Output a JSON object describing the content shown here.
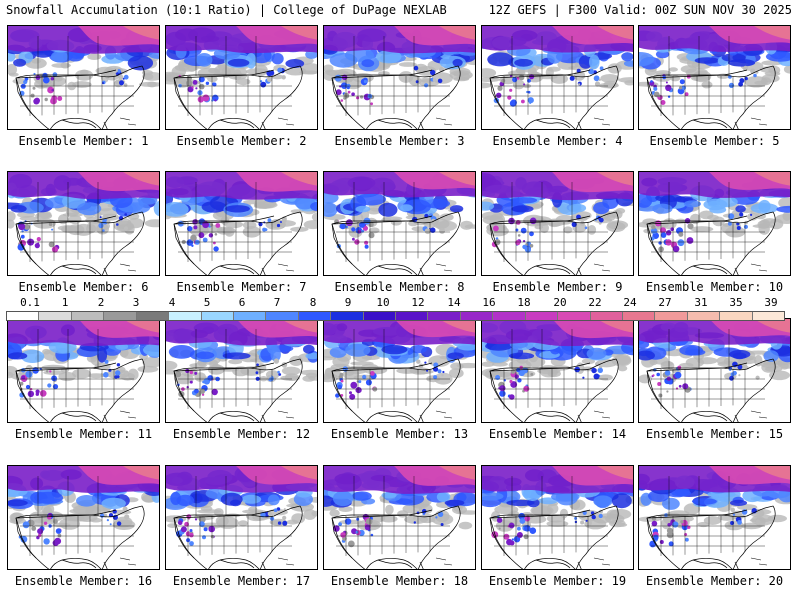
{
  "header": {
    "left": "Snowfall Accumulation (10:1 Ratio) | College of DuPage NEXLAB",
    "right": "12Z GEFS | F300 Valid: 00Z SUN NOV 30 2025"
  },
  "colorbar": {
    "labels": [
      "0.1",
      "1",
      "2",
      "3",
      "4",
      "5",
      "6",
      "7",
      "8",
      "9",
      "10",
      "12",
      "14",
      "16",
      "18",
      "20",
      "22",
      "24",
      "27",
      "31",
      "35",
      "39"
    ],
    "colors": [
      "#ffffff",
      "#dcdcdc",
      "#bdbdbd",
      "#9a9a9a",
      "#7a7a7a",
      "#c8f0ff",
      "#9ad6ff",
      "#6fb0ff",
      "#4f86ff",
      "#2f58ff",
      "#1c2fe0",
      "#3a10c8",
      "#5a14c8",
      "#7a1ec8",
      "#9828c8",
      "#b232c8",
      "#c83cc0",
      "#d84ab4",
      "#e0609c",
      "#e87890",
      "#f09a9a",
      "#f5bcae",
      "#f9d6c0",
      "#fce8d8"
    ]
  },
  "members": [
    {
      "caption": "Ensemble Member: 1",
      "intensity": 0.95
    },
    {
      "caption": "Ensemble Member: 2",
      "intensity": 0.9
    },
    {
      "caption": "Ensemble Member: 3",
      "intensity": 0.92
    },
    {
      "caption": "Ensemble Member: 4",
      "intensity": 0.85
    },
    {
      "caption": "Ensemble Member: 5",
      "intensity": 0.8
    },
    {
      "caption": "Ensemble Member: 6",
      "intensity": 0.9
    },
    {
      "caption": "Ensemble Member: 7",
      "intensity": 0.95
    },
    {
      "caption": "Ensemble Member: 8",
      "intensity": 0.75
    },
    {
      "caption": "Ensemble Member: 9",
      "intensity": 0.98
    },
    {
      "caption": "Ensemble Member: 10",
      "intensity": 0.8
    },
    {
      "caption": "Ensemble Member: 11",
      "intensity": 0.88
    },
    {
      "caption": "Ensemble Member: 12",
      "intensity": 0.85
    },
    {
      "caption": "Ensemble Member: 13",
      "intensity": 0.82
    },
    {
      "caption": "Ensemble Member: 14",
      "intensity": 0.9
    },
    {
      "caption": "Ensemble Member: 15",
      "intensity": 0.78
    },
    {
      "caption": "Ensemble Member: 16",
      "intensity": 0.88
    },
    {
      "caption": "Ensemble Member: 17",
      "intensity": 0.86
    },
    {
      "caption": "Ensemble Member: 18",
      "intensity": 0.97
    },
    {
      "caption": "Ensemble Member: 19",
      "intensity": 0.93
    },
    {
      "caption": "Ensemble Member: 20",
      "intensity": 0.84
    }
  ]
}
